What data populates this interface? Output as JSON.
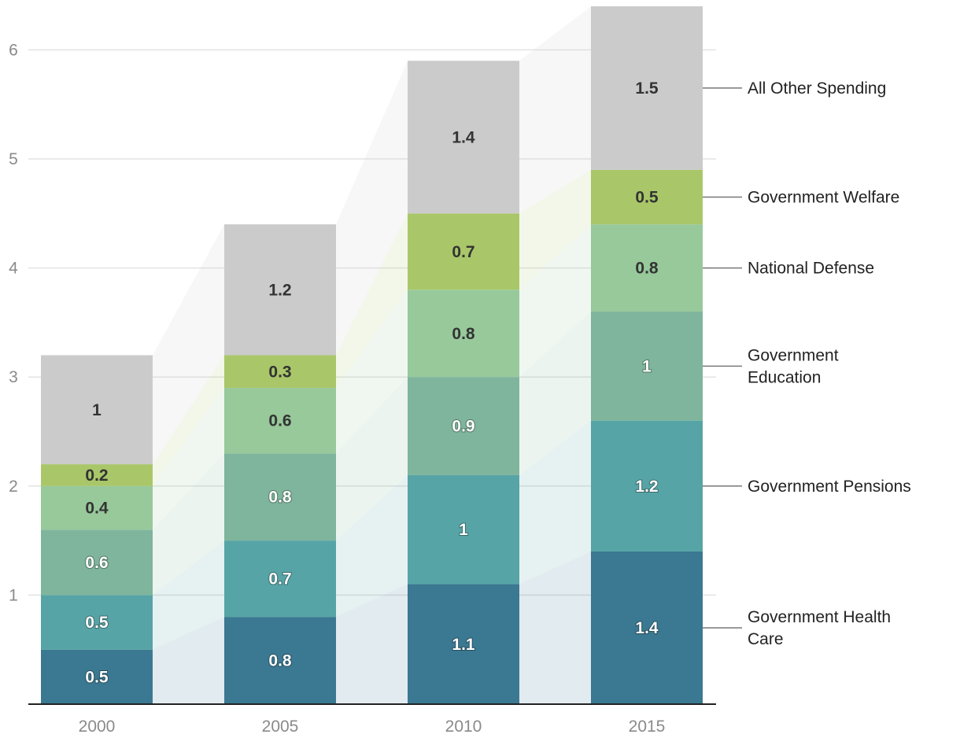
{
  "chart_data": {
    "type": "bar",
    "stacked": true,
    "title": "",
    "xlabel": "",
    "ylabel": "",
    "categories": [
      "2000",
      "2005",
      "2010",
      "2015"
    ],
    "ylim": [
      0,
      6.4
    ],
    "yticks": [
      1,
      2,
      3,
      4,
      5,
      6
    ],
    "grid": true,
    "series": [
      {
        "name": "Government Health Care",
        "legend_lines": [
          "Government Health",
          "Care"
        ],
        "values": [
          0.5,
          0.8,
          1.1,
          1.4
        ],
        "color": "#3b7891",
        "label_color": "#ffffff"
      },
      {
        "name": "Government Pensions",
        "legend_lines": [
          "Government Pensions"
        ],
        "values": [
          0.5,
          0.7,
          1,
          1.2
        ],
        "color": "#57a4a6",
        "label_color": "#ffffff"
      },
      {
        "name": "Government Education",
        "legend_lines": [
          "Government",
          "Education"
        ],
        "values": [
          0.6,
          0.8,
          0.9,
          1
        ],
        "color": "#7eb59c",
        "label_color": "#ffffff"
      },
      {
        "name": "National Defense",
        "legend_lines": [
          "National Defense"
        ],
        "values": [
          0.4,
          0.6,
          0.8,
          0.8
        ],
        "color": "#97c99b",
        "label_color": "#333333"
      },
      {
        "name": "Government Welfare",
        "legend_lines": [
          "Government Welfare"
        ],
        "values": [
          0.2,
          0.3,
          0.7,
          0.5
        ],
        "color": "#a9c769",
        "label_color": "#333333"
      },
      {
        "name": "All Other Spending",
        "legend_lines": [
          "All Other Spending"
        ],
        "values": [
          1,
          1.2,
          1.4,
          1.5
        ],
        "color": "#cbcbcb",
        "label_color": "#333333"
      }
    ]
  }
}
